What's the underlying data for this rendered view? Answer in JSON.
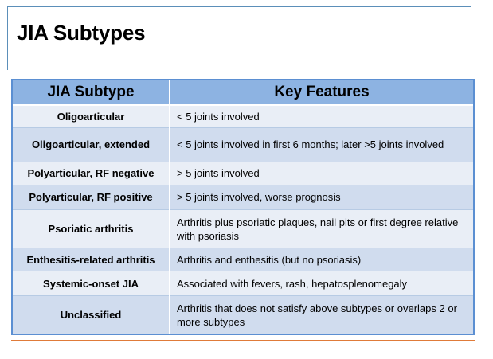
{
  "slide": {
    "title": "JIA Subtypes"
  },
  "table": {
    "headers": [
      "JIA Subtype",
      "Key Features"
    ],
    "rows": [
      {
        "subtype": "Oligoarticular",
        "features": "< 5 joints involved"
      },
      {
        "subtype": "Oligoarticular, extended",
        "features": "< 5 joints involved in first 6 months; later >5 joints involved"
      },
      {
        "subtype": "Polyarticular, RF negative",
        "features": "> 5 joints involved"
      },
      {
        "subtype": "Polyarticular, RF positive",
        "features": "> 5 joints involved, worse prognosis"
      },
      {
        "subtype": "Psoriatic arthritis",
        "features": "Arthritis plus psoriatic plaques, nail pits or first degree relative with psoriasis"
      },
      {
        "subtype": "Enthesitis-related arthritis",
        "features": "Arthritis and enthesitis (but no psoriasis)"
      },
      {
        "subtype": "Systemic-onset JIA",
        "features": "Associated with fevers, rash, hepatosplenomegaly"
      },
      {
        "subtype": "Unclassified",
        "features": "Arthritis that does not satisfy above subtypes  or overlaps 2 or more subtypes"
      }
    ]
  },
  "colors": {
    "header_bg": "#8db3e2",
    "row_light": "#e9eef6",
    "row_dark": "#d0dcee",
    "border": "#5b8fd2",
    "accent_rule": "#e07b39"
  }
}
